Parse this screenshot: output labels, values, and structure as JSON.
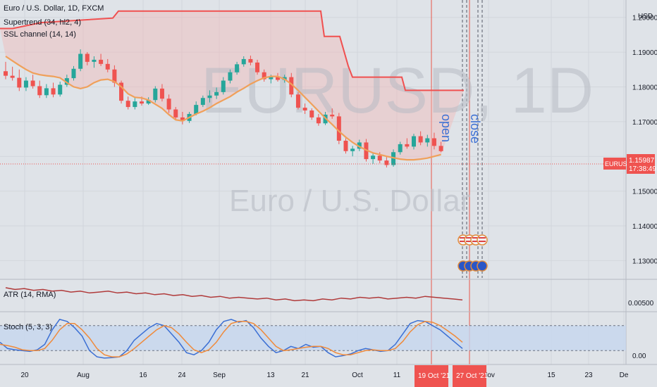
{
  "symbol": {
    "legend": "Euro / U.S. Dollar, 1D, FXCM",
    "watermark_ticker": "EURUSD, 1D",
    "watermark_name": "Euro / U.S. Dollar",
    "price_tag_label": "EURUSD",
    "last_price": "1.15987",
    "countdown": "17:38:49",
    "currency": "USD"
  },
  "indicators": {
    "supertrend": "Supertrend (34, hl2, 4)",
    "ssl": "SSL channel (14, 14)",
    "atr": "ATR (14, RMA)",
    "stoch": "Stoch (5, 3, 3)"
  },
  "annotations": {
    "open_label": "open",
    "close_label": "close",
    "open_date": "19 Oct '21",
    "close_date": "27 Oct '21"
  },
  "x_axis": {
    "labels": [
      "20",
      "Aug",
      "16",
      "24",
      "Sep",
      "13",
      "21",
      "Oct",
      "11",
      "Nov",
      "15",
      "23",
      "De"
    ]
  },
  "colors": {
    "up": "#26a69a",
    "down": "#ef5350",
    "supertrend": "#f05050",
    "ssl": "#f0a05a",
    "atr": "#b03a3a",
    "stoch_k": "#3b6fd4",
    "stoch_d": "#f08a3a",
    "marker": "#e8574a"
  },
  "chart_data": [
    {
      "type": "candlestick",
      "title": "Euro / U.S. Dollar, 1D, FXCM",
      "ylabel": "USD",
      "y_ticks": [
        "1.20000",
        "1.19000",
        "1.18000",
        "1.17000",
        "1.16000",
        "1.15000",
        "1.14000",
        "1.13000"
      ],
      "ylim": [
        1.125,
        1.205
      ],
      "ohlc": [
        [
          1.1845,
          1.1872,
          1.1822,
          1.1832
        ],
        [
          1.1832,
          1.1858,
          1.1818,
          1.1826
        ],
        [
          1.1826,
          1.185,
          1.1788,
          1.1798
        ],
        [
          1.1798,
          1.1828,
          1.1788,
          1.1818
        ],
        [
          1.1818,
          1.1835,
          1.1795,
          1.1802
        ],
        [
          1.1802,
          1.1818,
          1.1768,
          1.1776
        ],
        [
          1.1776,
          1.1808,
          1.1768,
          1.1796
        ],
        [
          1.1796,
          1.1812,
          1.177,
          1.1778
        ],
        [
          1.1778,
          1.1815,
          1.1772,
          1.1806
        ],
        [
          1.1806,
          1.1835,
          1.18,
          1.1825
        ],
        [
          1.1825,
          1.186,
          1.1818,
          1.1852
        ],
        [
          1.1852,
          1.1908,
          1.1845,
          1.1895
        ],
        [
          1.1895,
          1.19,
          1.1862,
          1.1872
        ],
        [
          1.1872,
          1.1888,
          1.1855,
          1.1878
        ],
        [
          1.1878,
          1.1895,
          1.186,
          1.1866
        ],
        [
          1.1866,
          1.188,
          1.1842,
          1.185
        ],
        [
          1.185,
          1.1862,
          1.18,
          1.1812
        ],
        [
          1.1812,
          1.1818,
          1.1752,
          1.176
        ],
        [
          1.176,
          1.1772,
          1.1735,
          1.1742
        ],
        [
          1.1742,
          1.1768,
          1.1735,
          1.1758
        ],
        [
          1.1758,
          1.1772,
          1.1746,
          1.1752
        ],
        [
          1.1752,
          1.177,
          1.1748,
          1.1762
        ],
        [
          1.1762,
          1.1802,
          1.1755,
          1.1795
        ],
        [
          1.1795,
          1.1808,
          1.1758,
          1.1766
        ],
        [
          1.1766,
          1.1778,
          1.1725,
          1.1735
        ],
        [
          1.1735,
          1.1742,
          1.1705,
          1.1712
        ],
        [
          1.1712,
          1.1728,
          1.1692,
          1.1702
        ],
        [
          1.1702,
          1.1728,
          1.1696,
          1.1722
        ],
        [
          1.1722,
          1.1758,
          1.1718,
          1.1748
        ],
        [
          1.1748,
          1.1775,
          1.1742,
          1.1768
        ],
        [
          1.1768,
          1.179,
          1.1755,
          1.1775
        ],
        [
          1.1775,
          1.1798,
          1.1765,
          1.1785
        ],
        [
          1.1785,
          1.1828,
          1.1778,
          1.1818
        ],
        [
          1.1818,
          1.185,
          1.181,
          1.1842
        ],
        [
          1.1842,
          1.1872,
          1.1835,
          1.1865
        ],
        [
          1.1865,
          1.1888,
          1.1858,
          1.188
        ],
        [
          1.188,
          1.189,
          1.1862,
          1.187
        ],
        [
          1.187,
          1.1878,
          1.1835,
          1.1842
        ],
        [
          1.1842,
          1.185,
          1.1815,
          1.1822
        ],
        [
          1.1822,
          1.1835,
          1.181,
          1.1828
        ],
        [
          1.1828,
          1.184,
          1.1815,
          1.182
        ],
        [
          1.182,
          1.1835,
          1.1812,
          1.1828
        ],
        [
          1.1828,
          1.184,
          1.177,
          1.1778
        ],
        [
          1.1778,
          1.1785,
          1.1735,
          1.174
        ],
        [
          1.174,
          1.1752,
          1.1722,
          1.1732
        ],
        [
          1.1732,
          1.1738,
          1.1705,
          1.1712
        ],
        [
          1.1712,
          1.1722,
          1.1688,
          1.1695
        ],
        [
          1.1695,
          1.1728,
          1.169,
          1.172
        ],
        [
          1.172,
          1.1738,
          1.1708,
          1.1715
        ],
        [
          1.1715,
          1.1725,
          1.1635,
          1.1645
        ],
        [
          1.1645,
          1.1652,
          1.1608,
          1.1615
        ],
        [
          1.1615,
          1.163,
          1.16,
          1.1622
        ],
        [
          1.1622,
          1.1648,
          1.1615,
          1.164
        ],
        [
          1.164,
          1.165,
          1.1585,
          1.1592
        ],
        [
          1.1592,
          1.161,
          1.1578,
          1.1602
        ],
        [
          1.1602,
          1.1612,
          1.158,
          1.1588
        ],
        [
          1.1588,
          1.1598,
          1.1568,
          1.1575
        ],
        [
          1.1575,
          1.162,
          1.157,
          1.1612
        ],
        [
          1.1612,
          1.1642,
          1.1605,
          1.1635
        ],
        [
          1.1635,
          1.1652,
          1.1622,
          1.1628
        ],
        [
          1.1628,
          1.1665,
          1.162,
          1.1658
        ],
        [
          1.1658,
          1.1672,
          1.1632,
          1.164
        ],
        [
          1.164,
          1.1662,
          1.1628,
          1.1652
        ],
        [
          1.1652,
          1.1668,
          1.162,
          1.163
        ],
        [
          1.163,
          1.1642,
          1.1612,
          1.1615
        ]
      ],
      "supertrend_segments": [
        [
          1.1972,
          1.1972,
          1.198,
          1.1998,
          1.1998,
          1.1998,
          1.1998,
          1.1998,
          1.1998,
          1.1998,
          1.1998,
          1.1998,
          1.1998,
          1.1998,
          1.1998,
          1.1998,
          1.1998,
          1.1998,
          1.1998,
          1.1998,
          1.1998,
          1.1998,
          1.1998,
          1.1998,
          1.1998,
          1.1998,
          1.1998,
          1.1998,
          1.1998,
          1.1998,
          1.1998,
          1.1998,
          1.1998,
          1.1998,
          1.1998,
          1.1998,
          1.1998,
          1.1998,
          1.1998
        ],
        [
          1.1935,
          1.1935,
          1.1935,
          1.1935,
          1.1935,
          1.1935,
          1.1935,
          1.1935,
          1.1935,
          1.1935,
          1.1935,
          1.1935,
          1.1935,
          1.1935,
          1.1935,
          1.1935,
          1.1935,
          1.1935,
          1.1935,
          1.1935,
          1.1935,
          1.1935,
          1.1935,
          1.1935,
          1.1935,
          1.1935,
          1.1935,
          1.1935,
          1.1935,
          1.1935,
          1.1935,
          1.1935,
          1.1935,
          1.1935,
          1.1935,
          1.1935,
          1.1935,
          1.1935,
          1.1935,
          1.1935,
          1.1935,
          1.1935,
          1.1935,
          1.1935
        ],
        [
          1.189,
          1.186,
          1.1825,
          1.179,
          1.179,
          1.179,
          1.179,
          1.179,
          1.179,
          1.179,
          1.179,
          1.179,
          1.179,
          1.179,
          1.179,
          1.179,
          1.179,
          1.179,
          1.179,
          1.179,
          1.179,
          1.179,
          1.179,
          1.179,
          1.179,
          1.179
        ],
        [
          1.1755,
          1.1755,
          1.1755,
          1.1755,
          1.1755,
          1.1755,
          1.1755,
          1.1755,
          1.1755,
          1.1755,
          1.1755,
          1.1755,
          1.1755,
          1.1755,
          1.1755
        ]
      ],
      "ssl_line": [
        1.1888,
        1.1875,
        1.1862,
        1.185,
        1.184,
        1.1835,
        1.1832,
        1.183,
        1.1826,
        1.1812,
        1.18,
        1.1795,
        1.18,
        1.1812,
        1.182,
        1.1822,
        1.1815,
        1.18,
        1.178,
        1.177,
        1.1768,
        1.1762,
        1.175,
        1.1738,
        1.172,
        1.1705,
        1.1702,
        1.1712,
        1.1722,
        1.173,
        1.174,
        1.1752,
        1.1762,
        1.1772,
        1.1785,
        1.1796,
        1.1808,
        1.1818,
        1.1826,
        1.183,
        1.183,
        1.1822,
        1.1808,
        1.179,
        1.177,
        1.175,
        1.173,
        1.171,
        1.1692,
        1.1672,
        1.1655,
        1.164,
        1.1628,
        1.1618,
        1.161,
        1.1605,
        1.16,
        1.1596,
        1.1592,
        1.159,
        1.159,
        1.1592,
        1.1595,
        1.16,
        1.1605
      ]
    },
    {
      "type": "line",
      "title": "ATR (14, RMA)",
      "y_ticks": [
        "0.00500"
      ],
      "ylim": [
        0.0038,
        0.0072
      ],
      "series": [
        {
          "name": "ATR",
          "values": [
            0.0064,
            0.0062,
            0.0063,
            0.0061,
            0.0062,
            0.006,
            0.0061,
            0.0059,
            0.006,
            0.0058,
            0.0059,
            0.006,
            0.0058,
            0.0059,
            0.0057,
            0.0058,
            0.0056,
            0.0057,
            0.0055,
            0.0056,
            0.0054,
            0.0055,
            0.0053,
            0.0054,
            0.0052,
            0.0053,
            0.0052,
            0.0051,
            0.0052,
            0.005,
            0.0051,
            0.0049,
            0.005,
            0.0049,
            0.0051,
            0.005,
            0.0052,
            0.0051,
            0.0053,
            0.0052,
            0.0053,
            0.0051,
            0.0052,
            0.0053,
            0.0052,
            0.0054,
            0.0053,
            0.0052,
            0.0051,
            0.005
          ]
        }
      ]
    },
    {
      "type": "line",
      "title": "Stoch (5, 3, 3)",
      "y_ticks": [
        "0.00"
      ],
      "ylim": [
        -10,
        110
      ],
      "bands": [
        20,
        80
      ],
      "series": [
        {
          "name": "K",
          "values": [
            40,
            25,
            22,
            20,
            18,
            22,
            35,
            70,
            95,
            90,
            75,
            55,
            20,
            5,
            2,
            3,
            5,
            20,
            45,
            60,
            75,
            85,
            80,
            60,
            40,
            15,
            10,
            20,
            40,
            70,
            90,
            95,
            88,
            92,
            75,
            50,
            30,
            15,
            20,
            30,
            25,
            35,
            28,
            30,
            15,
            5,
            8,
            12,
            20,
            25,
            22,
            18,
            20,
            35,
            60,
            85,
            92,
            90,
            80,
            70,
            55,
            40,
            25
          ]
        },
        {
          "name": "D",
          "values": [
            35,
            32,
            28,
            22,
            20,
            20,
            25,
            45,
            70,
            85,
            85,
            70,
            50,
            25,
            10,
            5,
            5,
            12,
            25,
            40,
            55,
            70,
            80,
            75,
            60,
            40,
            22,
            15,
            22,
            40,
            65,
            85,
            90,
            90,
            85,
            70,
            50,
            30,
            20,
            22,
            25,
            28,
            30,
            30,
            25,
            15,
            10,
            10,
            15,
            20,
            22,
            20,
            20,
            25,
            42,
            65,
            82,
            90,
            88,
            80,
            68,
            55,
            40
          ]
        }
      ]
    }
  ]
}
